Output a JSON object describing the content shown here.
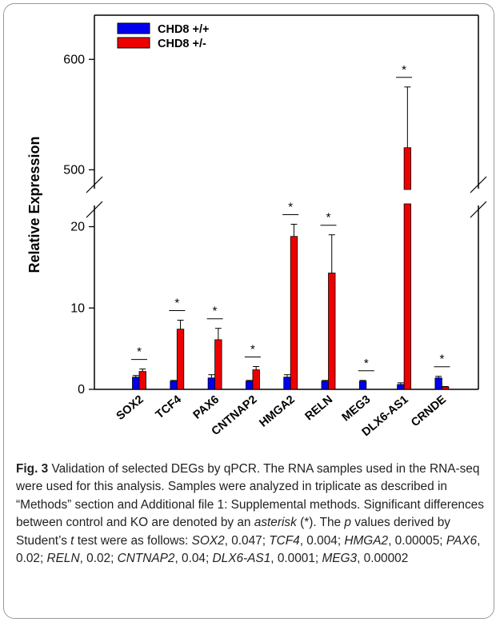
{
  "chart_data": {
    "type": "bar",
    "ylabel": "Relative Expression",
    "categories": [
      "SOX2",
      "TCF4",
      "PAX6",
      "CNTNAP2",
      "HMGA2",
      "RELN",
      "MEG3",
      "DLX6-AS1",
      "CRNDE"
    ],
    "series": [
      {
        "name": "CHD8 +/+",
        "color": "#0000ee",
        "values": [
          1.5,
          1.0,
          1.4,
          1.0,
          1.5,
          1.0,
          1.0,
          0.6,
          1.4
        ],
        "errors": [
          0.2,
          0.1,
          0.4,
          0.1,
          0.3,
          0.1,
          0.1,
          0.2,
          0.2
        ]
      },
      {
        "name": "CHD8 +/-",
        "color": "#ee0000",
        "values": [
          2.2,
          7.4,
          6.1,
          2.4,
          18.8,
          14.3,
          0.0,
          520,
          0.3
        ],
        "errors": [
          0.3,
          1.1,
          1.4,
          0.4,
          1.5,
          4.7,
          0.0,
          55,
          0.05
        ]
      }
    ],
    "significance": [
      "*",
      "*",
      "*",
      "*",
      "*",
      "*",
      "*",
      "*",
      "*"
    ],
    "y_axis_lower": {
      "ticks": [
        "0",
        "10",
        "20"
      ],
      "range": [
        0,
        23
      ]
    },
    "y_axis_upper": {
      "ticks": [
        "500",
        "600"
      ],
      "range": [
        480,
        640
      ]
    },
    "axis_break": true,
    "legend_position": "top-left"
  },
  "caption": {
    "fig_label": "Fig. 3",
    "text_1": " Validation of selected DEGs by qPCR. The RNA samples used in the RNA-seq were used for this analysis. Samples were analyzed in triplicate as described in “Methods” section and Additional file 1: Supplemental methods. Significant differences between control and KO are denoted by an ",
    "asterisk": "asterisk",
    "text_2": " (*). The ",
    "p": "p",
    "text_3": " values derived by Student’s ",
    "t": "t",
    "text_4": " test were as follows: ",
    "g1": "SOX2",
    "v1": ", 0.047; ",
    "g2": "TCF4",
    "v2": ", 0.004; ",
    "g3": "HMGA2",
    "v3": ", 0.00005; ",
    "g4": "PAX6",
    "v4": ", 0.02; ",
    "g5": "RELN",
    "v5": ", 0.02; ",
    "g6": "CNTNAP2",
    "v6": ", 0.04; ",
    "g7": "DLX6-AS1",
    "v7": ", 0.0001; ",
    "g8": "MEG3",
    "v8": ", 0.00002"
  }
}
